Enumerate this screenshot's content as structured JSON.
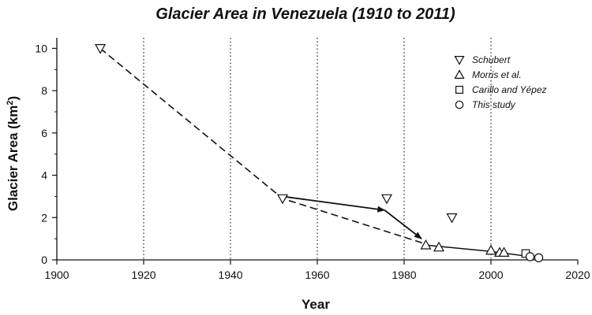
{
  "chart_data": {
    "type": "scatter",
    "title": "Glacier Area in Venezuela (1910 to 2011)",
    "xlabel": "Year",
    "ylabel": "Glacier Area (km²)",
    "ylabel_main": "Glacier Area (km",
    "ylabel_sup": "2",
    "ylabel_end": ")",
    "xlim": [
      1900,
      2020
    ],
    "ylim": [
      0,
      10.5
    ],
    "xticks": [
      1900,
      1920,
      1940,
      1960,
      1980,
      2000,
      2020
    ],
    "yticks": [
      0,
      2,
      4,
      6,
      8,
      10
    ],
    "vertical_gridlines_dotted_at": [
      1920,
      1940,
      1960,
      1980,
      2000
    ],
    "legend_placement": "top-right",
    "series": [
      {
        "name": "Schubert",
        "marker": "triangle-down",
        "points": [
          [
            1910,
            10.0
          ],
          [
            1952,
            2.9
          ],
          [
            1976,
            2.9
          ],
          [
            1991,
            2.0
          ]
        ]
      },
      {
        "name": "Morris et al.",
        "marker": "triangle-up",
        "points": [
          [
            1985,
            0.7
          ],
          [
            1988,
            0.6
          ],
          [
            2000,
            0.45
          ],
          [
            2002,
            0.35
          ],
          [
            2003,
            0.35
          ]
        ]
      },
      {
        "name": "Carillo and Yépez",
        "marker": "square",
        "points": [
          [
            2008,
            0.3
          ]
        ]
      },
      {
        "name": "This study",
        "marker": "circle",
        "points": [
          [
            2009,
            0.15
          ],
          [
            2011,
            0.1
          ]
        ]
      }
    ],
    "dashed_trend": [
      [
        1910,
        10.0
      ],
      [
        1952,
        2.9
      ],
      [
        1985,
        0.75
      ]
    ],
    "solid_trend": [
      [
        1985,
        0.7
      ],
      [
        2000,
        0.4
      ],
      [
        2011,
        0.1
      ]
    ],
    "arrows": [
      {
        "from": [
          1952,
          3.0
        ],
        "to": [
          1975.5,
          2.35
        ]
      },
      {
        "from": [
          1975.5,
          2.35
        ],
        "to": [
          1984,
          1.0
        ]
      }
    ]
  }
}
